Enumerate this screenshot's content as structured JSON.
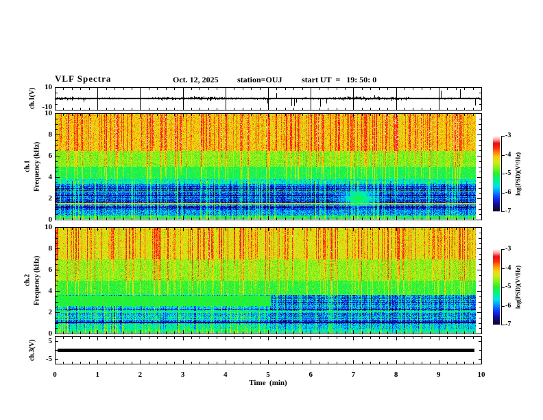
{
  "header": {
    "title": "VLF Spectra",
    "date": "Oct. 12, 2025",
    "station": "station=OUJ",
    "start_ut": "start UT  =   19: 50: 0"
  },
  "x_axis": {
    "label": "Time  (min)",
    "tick_labels": [
      "0",
      "1",
      "2",
      "3",
      "4",
      "5",
      "6",
      "7",
      "8",
      "9",
      "10"
    ],
    "range_min": [
      0,
      10
    ],
    "minor_step_min": 0.2
  },
  "colorbar": {
    "label": "log(PSD)(V²/Hz)",
    "tick_labels": [
      "-3",
      "-4",
      "-5",
      "-6",
      "-7"
    ],
    "range": [
      -7,
      -3
    ],
    "palette": [
      [
        0.0,
        [
          8,
          8,
          40
        ]
      ],
      [
        0.1,
        [
          15,
          15,
          150
        ]
      ],
      [
        0.18,
        [
          20,
          50,
          255
        ]
      ],
      [
        0.26,
        [
          0,
          150,
          255
        ]
      ],
      [
        0.33,
        [
          0,
          225,
          235
        ]
      ],
      [
        0.42,
        [
          0,
          245,
          130
        ]
      ],
      [
        0.5,
        [
          40,
          240,
          40
        ]
      ],
      [
        0.58,
        [
          140,
          240,
          25
        ]
      ],
      [
        0.66,
        [
          215,
          235,
          20
        ]
      ],
      [
        0.72,
        [
          252,
          200,
          15
        ]
      ],
      [
        0.78,
        [
          255,
          130,
          10
        ]
      ],
      [
        0.84,
        [
          255,
          40,
          15
        ]
      ],
      [
        0.9,
        [
          230,
          15,
          15
        ]
      ],
      [
        0.95,
        [
          255,
          160,
          160
        ]
      ],
      [
        1.0,
        [
          255,
          255,
          255
        ]
      ]
    ]
  },
  "panels": {
    "wf": {
      "ylabel": "ch.1(V)",
      "ymax_label": "10",
      "ymin_label": "-10",
      "yrange_v": [
        -10,
        10
      ]
    },
    "spec1": {
      "ch_label": "ch.1",
      "freq_label": "Frequency (kHz)",
      "ytick_labels": [
        "10",
        "8",
        "6",
        "4",
        "2",
        "0"
      ],
      "yrange_khz": [
        0,
        10
      ]
    },
    "spec2": {
      "ch_label": "ch.2",
      "freq_label": "Frequency (kHz)",
      "ytick_labels": [
        "10",
        "8",
        "6",
        "4",
        "2",
        "0"
      ],
      "yrange_khz": [
        0,
        10
      ]
    },
    "ch3": {
      "ylabel": "ch.3(V)",
      "ymax_label": "5",
      "ymin_label": "-5",
      "yrange_v": [
        -5,
        5
      ],
      "line_value_v": 0
    }
  },
  "chart_data": [
    {
      "id": "ch1_waveform",
      "type": "line",
      "title": "ch.1 raw signal",
      "ylabel": "ch.1(V)",
      "x_range_min": [
        0,
        10
      ],
      "y_range_v": [
        -10,
        10
      ],
      "typical_amplitude_v": 2,
      "spike_amplitude_v": 9,
      "description": "dense zero-mean broadband noise ~±2 V with intermittent impulsive spikes reaching ±9 V across the whole record"
    },
    {
      "id": "ch1_spectrogram",
      "type": "heatmap",
      "title": "ch.1 VLF power spectral density",
      "x_range_min": [
        0,
        9.85
      ],
      "y_range_khz": [
        0,
        10
      ],
      "z_scale": "log(PSD)(V²/Hz)",
      "z_range": [
        -7,
        -3
      ],
      "bands": [
        {
          "f0": 6.5,
          "f1": 10,
          "base": -4.15,
          "noise": 0.3
        },
        {
          "f0": 5.0,
          "f1": 6.5,
          "base": -4.7,
          "noise": 0.3
        },
        {
          "f0": 3.8,
          "f1": 5.0,
          "base": -5.1,
          "noise": 0.3
        },
        {
          "f0": 3.3,
          "f1": 3.8,
          "base": -5.55,
          "noise": 0.35
        },
        {
          "f0": 0.9,
          "f1": 3.3,
          "base": -6.3,
          "noise": 0.45
        },
        {
          "f0": 0.35,
          "f1": 0.9,
          "base": -5.95,
          "noise": 0.45
        },
        {
          "f0": 0.0,
          "f1": 0.35,
          "base": -5.15,
          "noise": 0.3
        }
      ],
      "stripes": {
        "f0": 0.85,
        "f1": 3.5,
        "amp": 0.26
      },
      "features": [
        {
          "type": "hline",
          "f": 1.45,
          "halfwidth": 0.06,
          "value": -4.35,
          "noise": 0.35
        },
        {
          "type": "hline",
          "f": 2.6,
          "halfwidth": 0.05,
          "value": -5.1,
          "noise": 0.25
        },
        {
          "type": "blob",
          "t": 7.1,
          "f": 2.0,
          "rt": 0.35,
          "rf": 0.7,
          "value": -5.15
        }
      ],
      "description": "red/orange high power above ~6.5 kHz with dense vertical sferic streaks, green 4-6.5 kHz, dark blue 1-3.3 kHz with horizontal interference lines, green band at lowest frequencies"
    },
    {
      "id": "ch2_spectrogram",
      "type": "heatmap",
      "title": "ch.2 VLF power spectral density",
      "x_range_min": [
        0,
        9.85
      ],
      "y_range_khz": [
        0,
        10
      ],
      "z_scale": "log(PSD)(V²/Hz)",
      "z_range": [
        -7,
        -3
      ],
      "bands": [
        {
          "f0": 7.0,
          "f1": 10,
          "base": -4.3,
          "noise": 0.3
        },
        {
          "f0": 5.0,
          "f1": 7.0,
          "base": -4.65,
          "noise": 0.3
        },
        {
          "f0": 3.6,
          "f1": 5.0,
          "base": -5.0,
          "noise": 0.28
        },
        {
          "f0": 0.9,
          "f1": 3.6,
          "base": -5.85,
          "noise": 0.5
        },
        {
          "f0": 0.35,
          "f1": 0.9,
          "base": -5.5,
          "noise": 0.4
        },
        {
          "f0": 0.0,
          "f1": 0.35,
          "base": -5.15,
          "noise": 0.3
        }
      ],
      "stripes": {
        "f0": 0.85,
        "f1": 3.5,
        "amp": 0.26
      },
      "features": [
        {
          "type": "smooth_band",
          "fa": 2.55,
          "fb": 3.55,
          "t_end": 5.03,
          "value": -5.05,
          "noise": 0.13
        },
        {
          "type": "dim_after",
          "t": 5.03,
          "fmax": 3.6,
          "delta": -0.3
        },
        {
          "type": "hline",
          "f": 1.02,
          "halfwidth": 0.08,
          "value": -6.75,
          "noise": 0.25
        },
        {
          "type": "hline",
          "f": 2.05,
          "halfwidth": 0.05,
          "value": -5.25,
          "noise": 0.25
        },
        {
          "type": "hline",
          "f": 1.62,
          "halfwidth": 0.05,
          "value": -5.45,
          "noise": 0.25
        }
      ],
      "description": "yellow-green with red sferic streaks above ~5 kHz, smooth green band 2.5-3.5 kHz that ends near t=5 min after which low frequencies turn bluer, blue 1-2.5 kHz with horizontal lines, green speckle at bottom"
    },
    {
      "id": "ch3_level",
      "type": "line",
      "title": "ch.3 raw signal",
      "ylabel": "ch.3(V)",
      "x_range_min": [
        0,
        9.85
      ],
      "y_range_v": [
        -5,
        5
      ],
      "value_v": 0,
      "description": "constant flat thick trace at 0 V for the entire record"
    }
  ],
  "colors": {
    "ink": "#000000",
    "background": "#ffffff"
  }
}
